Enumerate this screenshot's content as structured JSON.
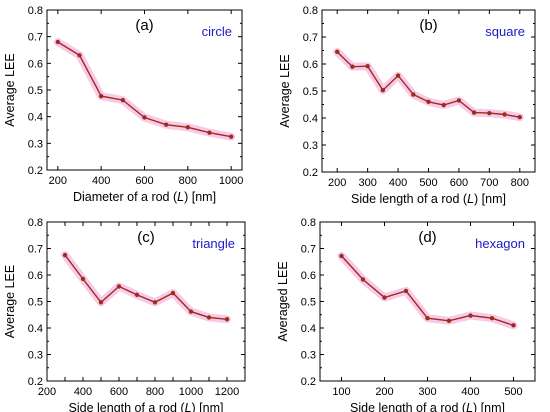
{
  "chart_data": [
    {
      "type": "line",
      "panel_label": "(a)",
      "shape_label": "circle",
      "xlabel": "Diameter of a rod (L) [nm]",
      "ylabel": "Average LEE",
      "xlim": [
        150,
        1050
      ],
      "ylim": [
        0.2,
        0.8
      ],
      "xticks": [
        200,
        400,
        600,
        800,
        1000
      ],
      "yticks": [
        0.2,
        0.3,
        0.4,
        0.5,
        0.6,
        0.7,
        0.8
      ],
      "x": [
        200,
        300,
        400,
        500,
        600,
        700,
        800,
        900,
        1000
      ],
      "y": [
        0.68,
        0.63,
        0.477,
        0.462,
        0.397,
        0.37,
        0.36,
        0.34,
        0.325
      ]
    },
    {
      "type": "line",
      "panel_label": "(b)",
      "shape_label": "square",
      "xlabel": "Side length of a rod (L) [nm]",
      "ylabel": "Average LEE",
      "xlim": [
        150,
        850
      ],
      "ylim": [
        0.2,
        0.8
      ],
      "xticks": [
        200,
        300,
        400,
        500,
        600,
        700,
        800
      ],
      "yticks": [
        0.2,
        0.3,
        0.4,
        0.5,
        0.6,
        0.7,
        0.8
      ],
      "x": [
        200,
        250,
        300,
        350,
        400,
        450,
        500,
        550,
        600,
        650,
        700,
        750,
        800
      ],
      "y": [
        0.645,
        0.59,
        0.592,
        0.503,
        0.557,
        0.487,
        0.46,
        0.448,
        0.465,
        0.42,
        0.418,
        0.413,
        0.403
      ]
    },
    {
      "type": "line",
      "panel_label": "(c)",
      "shape_label": "triangle",
      "xlabel": "Side length of a rod (L) [nm]",
      "ylabel": "Average LEE",
      "xlim": [
        200,
        1300
      ],
      "ylim": [
        0.2,
        0.8
      ],
      "xticks": [
        200,
        300,
        400,
        500,
        600,
        700,
        800,
        900,
        1000,
        1100,
        1200
      ],
      "xtick_labels": [
        "200",
        "",
        "400",
        "",
        "600",
        "",
        "800",
        "",
        "1000",
        "",
        "1200"
      ],
      "yticks": [
        0.2,
        0.3,
        0.4,
        0.5,
        0.6,
        0.7,
        0.8
      ],
      "x": [
        300,
        400,
        500,
        600,
        700,
        800,
        900,
        1000,
        1100,
        1200
      ],
      "y": [
        0.675,
        0.585,
        0.497,
        0.557,
        0.525,
        0.497,
        0.532,
        0.462,
        0.44,
        0.433
      ]
    },
    {
      "type": "line",
      "panel_label": "(d)",
      "shape_label": "hexagon",
      "xlabel": "Side length of a rod (L) [nm]",
      "ylabel": "Averaged LEE",
      "xlim": [
        50,
        550
      ],
      "ylim": [
        0.2,
        0.8
      ],
      "xticks": [
        100,
        200,
        300,
        400,
        500
      ],
      "yticks": [
        0.2,
        0.3,
        0.4,
        0.5,
        0.6,
        0.7,
        0.8
      ],
      "x": [
        100,
        150,
        200,
        250,
        300,
        350,
        400,
        450,
        500
      ],
      "y": [
        0.672,
        0.583,
        0.515,
        0.54,
        0.437,
        0.427,
        0.447,
        0.437,
        0.41
      ]
    }
  ],
  "colors": {
    "line": "#9b2d1e",
    "marker": "#9b2d1e",
    "glow": "#f6b8e0",
    "shape_label": "#1a1acc"
  }
}
